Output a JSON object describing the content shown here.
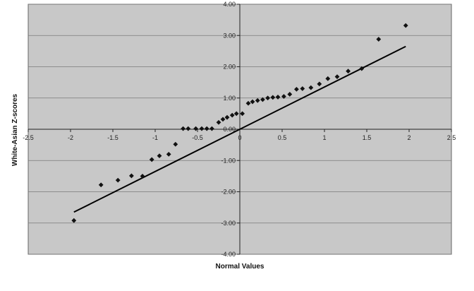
{
  "chart_data": {
    "type": "scatter",
    "title": "",
    "xlabel": "Normal Values",
    "ylabel": "White-Asian Z-scores",
    "xlim": [
      -2.5,
      2.5
    ],
    "ylim": [
      -4.0,
      4.0
    ],
    "x_ticks": [
      -2.5,
      -2,
      -1.5,
      -1,
      -0.5,
      0,
      0.5,
      1,
      1.5,
      2,
      2.5
    ],
    "x_tick_labels": [
      "-2.5",
      "-2",
      "-1.5",
      "-1",
      "-0.5",
      "0",
      "0.5",
      "1",
      "1.5",
      "2",
      "2.5"
    ],
    "y_ticks": [
      -4,
      -3,
      -2,
      -1,
      0,
      1,
      2,
      3,
      4
    ],
    "y_tick_labels": [
      "-4.00",
      "-3.00",
      "-2.00",
      "-1.00",
      "0.00",
      "1.00",
      "2.00",
      "3.00",
      "4.00"
    ],
    "grid": "horizontal",
    "plot_background": "#c8c8c8",
    "marker_color": "#111111",
    "line_color": "#000000",
    "series": [
      {
        "marker": "diamond",
        "x": [
          -1.96,
          -1.64,
          -1.44,
          -1.28,
          -1.15,
          -1.04,
          -0.95,
          -0.84,
          -0.76,
          -0.67,
          -0.61,
          -0.52,
          -0.45,
          -0.39,
          -0.33,
          -0.25,
          -0.2,
          -0.15,
          -0.09,
          -0.04,
          0.03,
          0.1,
          0.15,
          0.21,
          0.27,
          0.33,
          0.39,
          0.45,
          0.52,
          0.59,
          0.67,
          0.74,
          0.84,
          0.94,
          1.04,
          1.15,
          1.28,
          1.44,
          1.64,
          1.96
        ],
        "y": [
          -2.92,
          -1.78,
          -1.63,
          -1.49,
          -1.5,
          -0.97,
          -0.85,
          -0.8,
          -0.48,
          0.02,
          0.02,
          0.02,
          0.02,
          0.02,
          0.02,
          0.22,
          0.32,
          0.38,
          0.45,
          0.5,
          0.5,
          0.83,
          0.88,
          0.92,
          0.95,
          1.0,
          1.02,
          1.03,
          1.05,
          1.12,
          1.28,
          1.3,
          1.33,
          1.45,
          1.62,
          1.68,
          1.86,
          1.94,
          2.88,
          3.32
        ]
      }
    ],
    "trendline": {
      "x": [
        -1.96,
        1.96
      ],
      "y": [
        -2.65,
        2.65
      ]
    }
  }
}
